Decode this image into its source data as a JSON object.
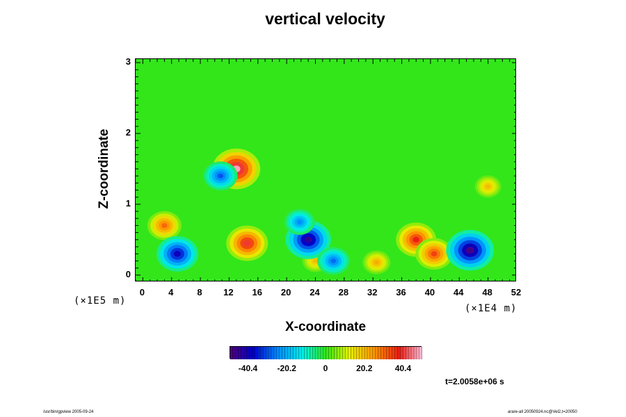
{
  "chart_data": {
    "type": "heatmap",
    "title": "vertical velocity",
    "xlabel": "X-coordinate",
    "ylabel": "Z-coordinate",
    "x_scale_note": "(×1E4 m)",
    "z_scale_note": "(×1E5 m)",
    "xlim": [
      -1,
      52
    ],
    "ylim": [
      -0.1,
      3.05
    ],
    "x_ticks": [
      "0",
      "4",
      "8",
      "12",
      "16",
      "20",
      "24",
      "28",
      "32",
      "36",
      "40",
      "44",
      "48",
      "52"
    ],
    "y_ticks": [
      "0",
      "1",
      "2",
      "3"
    ],
    "colorbar": {
      "range": [
        -50,
        50
      ],
      "ticks": [
        "-40.4",
        "-20.2",
        "0",
        "20.2",
        "40.4"
      ],
      "colormap": "rainbow (purple-blue-cyan-green-yellow-red-pink)"
    },
    "features": [
      {
        "sign": "positive",
        "x": 14.5,
        "z": 0.45,
        "strength": 40
      },
      {
        "sign": "positive",
        "x": 13.0,
        "z": 1.5,
        "strength": 48
      },
      {
        "sign": "positive",
        "x": 38.0,
        "z": 0.5,
        "strength": 38
      },
      {
        "sign": "positive",
        "x": 40.5,
        "z": 0.3,
        "strength": 34
      },
      {
        "sign": "positive",
        "x": 3.0,
        "z": 0.7,
        "strength": 30
      },
      {
        "sign": "positive",
        "x": 32.5,
        "z": 0.18,
        "strength": 22
      },
      {
        "sign": "positive",
        "x": 24.0,
        "z": 0.2,
        "strength": 20
      },
      {
        "sign": "positive",
        "x": 48.0,
        "z": 1.25,
        "strength": 20
      },
      {
        "sign": "negative",
        "x": 45.5,
        "z": 0.35,
        "strength": -48
      },
      {
        "sign": "negative",
        "x": 4.8,
        "z": 0.3,
        "strength": -40
      },
      {
        "sign": "negative",
        "x": 23.0,
        "z": 0.5,
        "strength": -45
      },
      {
        "sign": "negative",
        "x": 26.5,
        "z": 0.2,
        "strength": -28
      },
      {
        "sign": "negative",
        "x": 10.8,
        "z": 1.4,
        "strength": -30
      },
      {
        "sign": "negative",
        "x": 21.8,
        "z": 0.75,
        "strength": -25
      }
    ],
    "time_label": "t=2.0058e+06 s"
  },
  "footer": {
    "left": "/usr/bin/gpview 2005-09-24",
    "right": "arare-all 20050924.nc@Vel2,t=20050"
  }
}
